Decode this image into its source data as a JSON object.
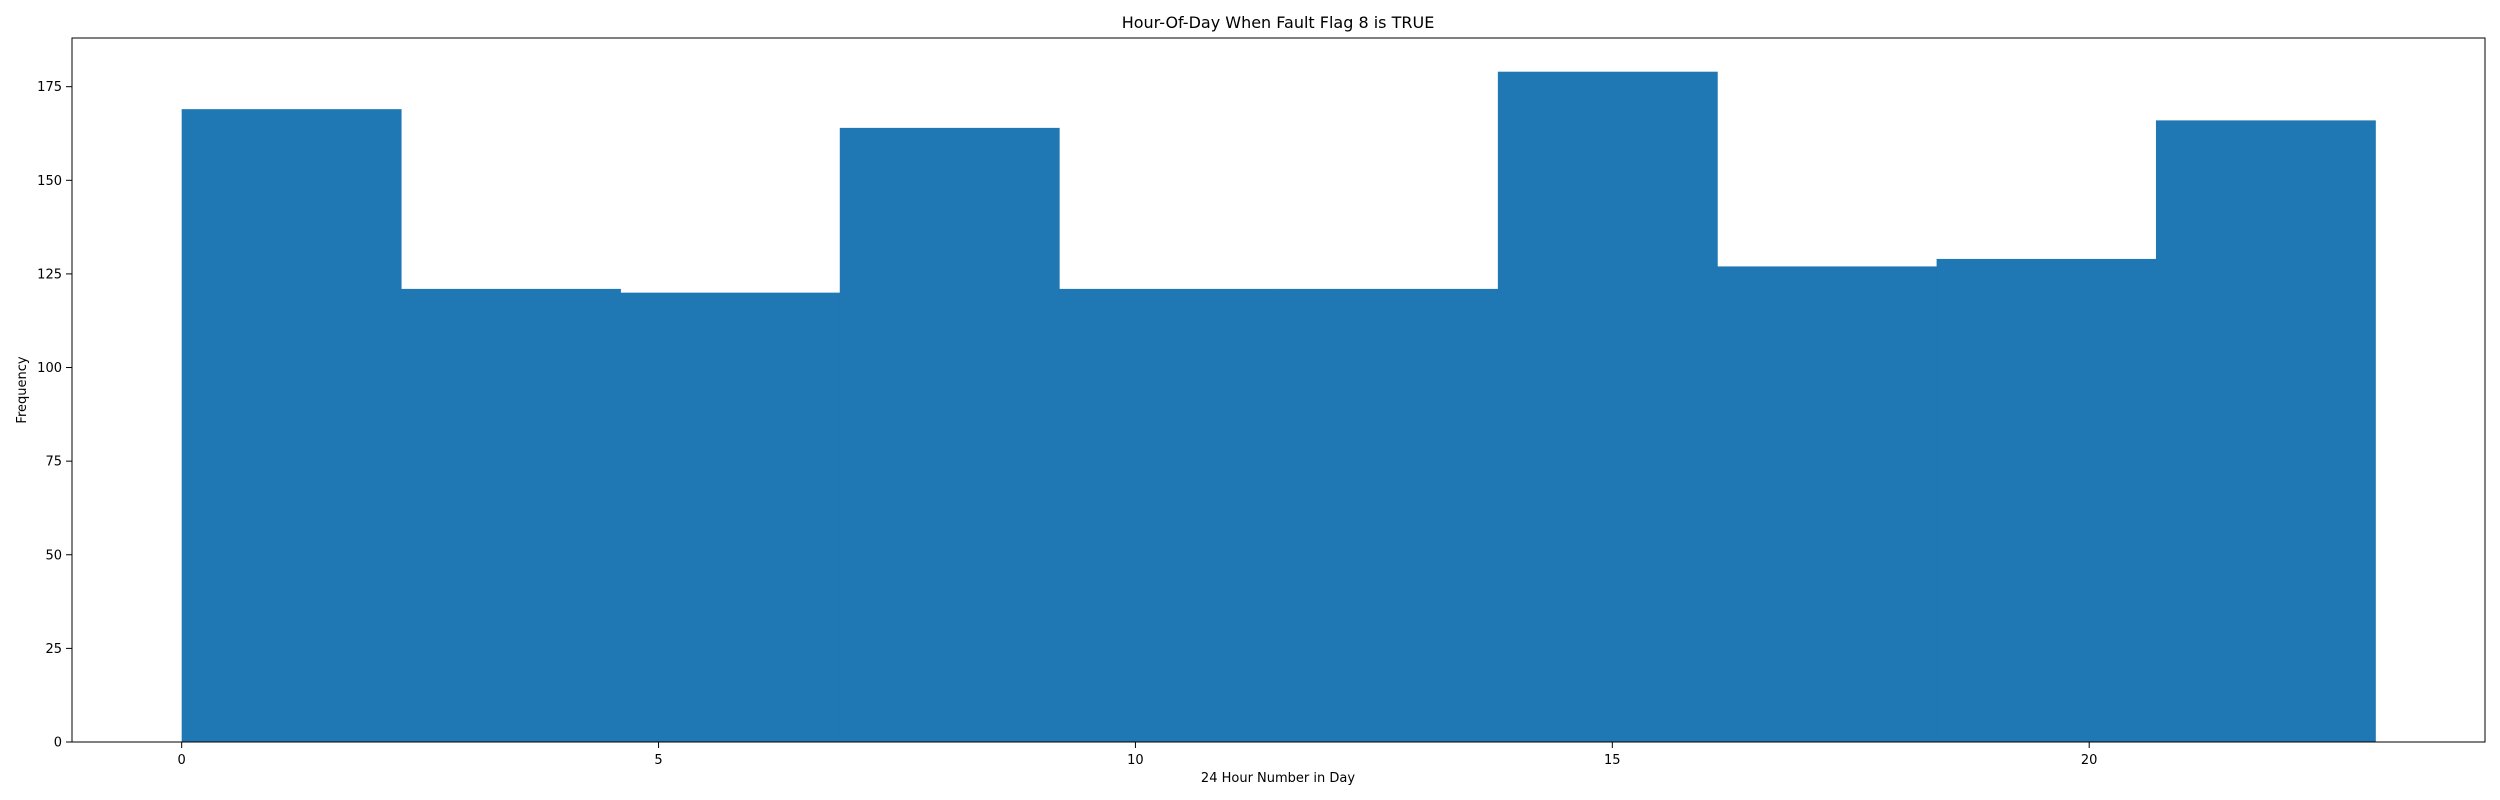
{
  "chart_data": {
    "type": "bar",
    "title": "Hour-Of-Day When Fault Flag 8 is TRUE",
    "xlabel": "24 Hour Number in Day",
    "ylabel": "Frequency",
    "bin_edges": [
      0,
      2.3,
      4.6,
      6.9,
      9.2,
      11.5,
      13.8,
      16.1,
      18.4,
      20.7,
      23
    ],
    "values": [
      169,
      121,
      120,
      164,
      121,
      121,
      179,
      127,
      129,
      166
    ],
    "xlim": [
      -1.15,
      24.15
    ],
    "ylim": [
      0,
      188
    ],
    "xticks": [
      0,
      5,
      10,
      15,
      20
    ],
    "xtick_labels": [
      "0",
      "5",
      "10",
      "15",
      "20"
    ],
    "yticks": [
      0,
      25,
      50,
      75,
      100,
      125,
      150,
      175
    ],
    "ytick_labels": [
      "0",
      "25",
      "50",
      "75",
      "100",
      "125",
      "150",
      "175"
    ],
    "bar_color": "#1f77b4",
    "grid": false,
    "legend": "none"
  }
}
